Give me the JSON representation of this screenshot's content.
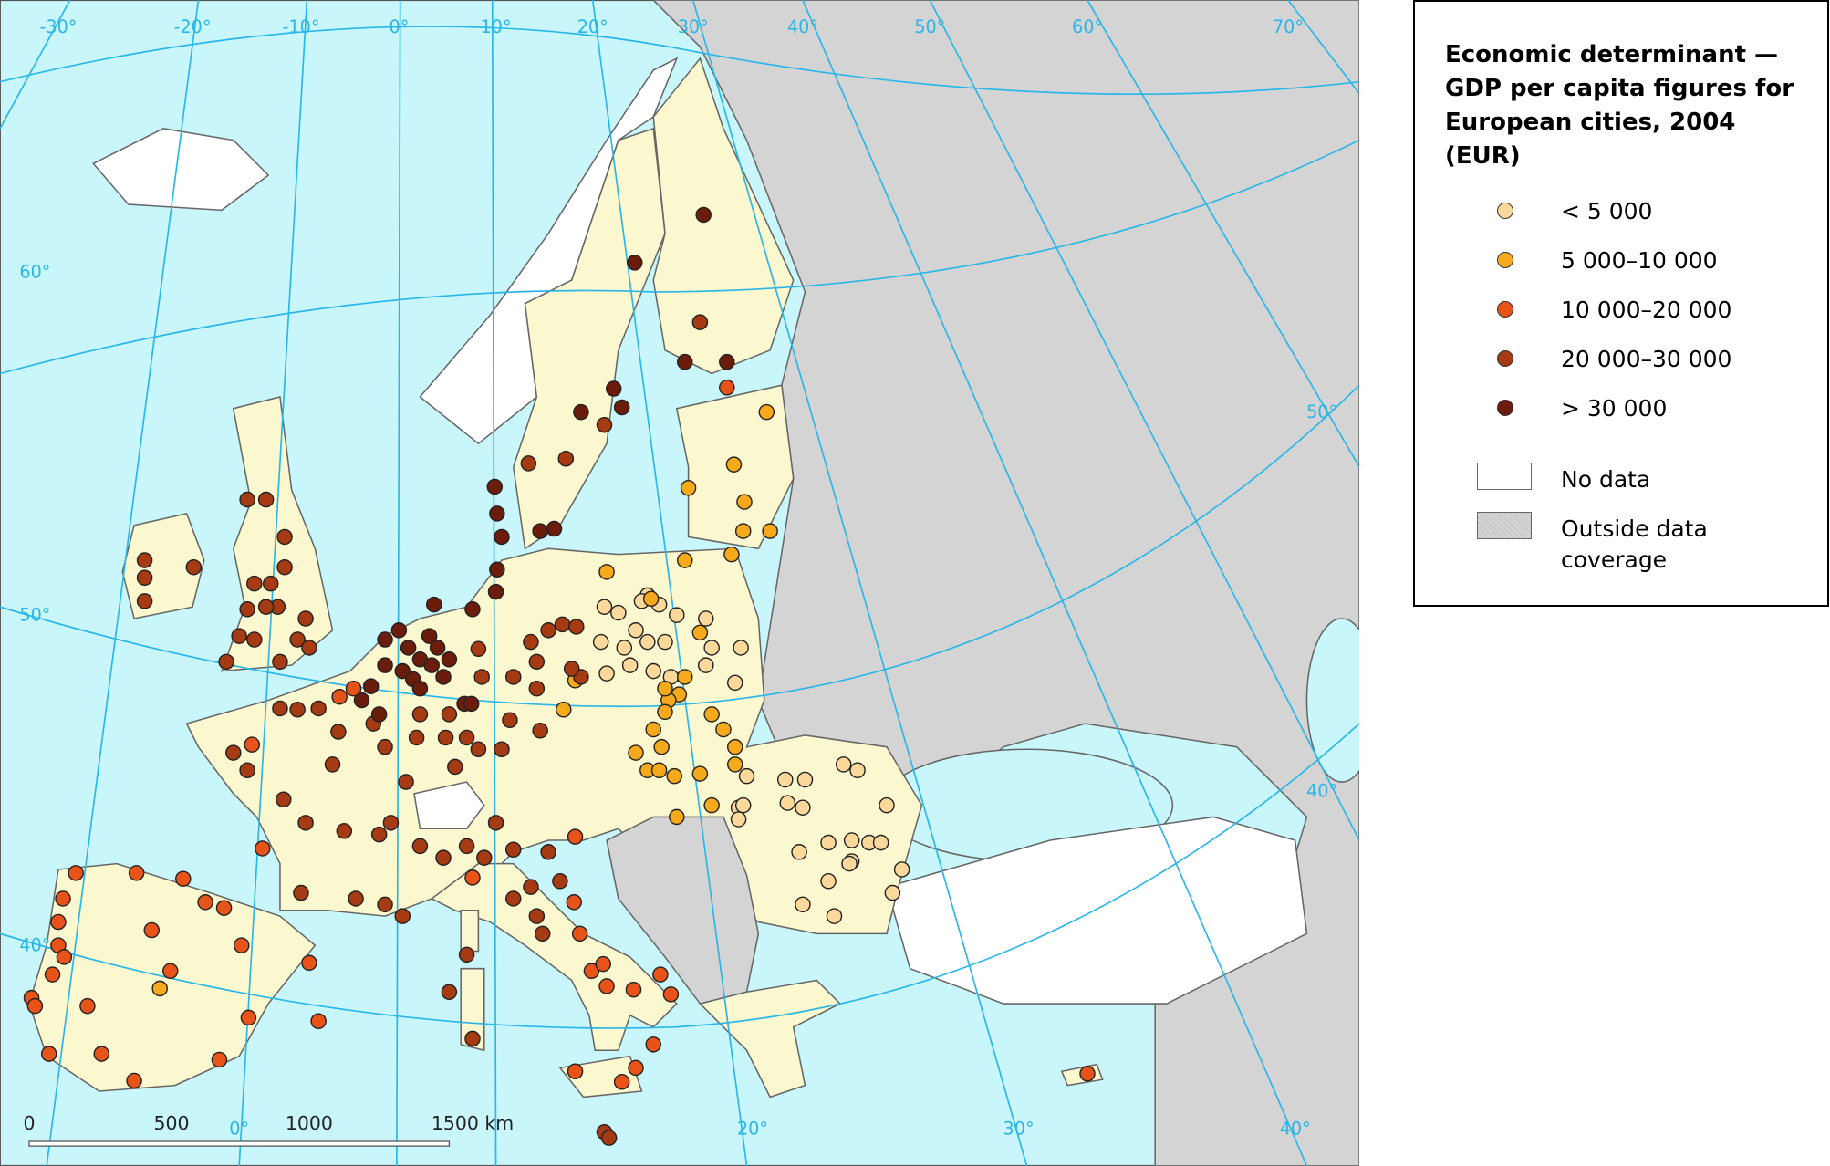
{
  "title": "Economic determinant — GDP per capita figures for European cities, 2004 (EUR)",
  "legend": {
    "classes": [
      {
        "label": "< 5 000",
        "color": "#fcd89a"
      },
      {
        "label": "5 000–10 000",
        "color": "#f6a91b"
      },
      {
        "label": "10 000–20 000",
        "color": "#e8531a"
      },
      {
        "label": "20 000–30 000",
        "color": "#a63a12"
      },
      {
        "label": "> 30 000",
        "color": "#6b1c0a"
      }
    ],
    "areas": [
      {
        "label": "No data",
        "color": "#ffffff"
      },
      {
        "label": "Outside data coverage",
        "color": "#d4d4d4"
      }
    ]
  },
  "graticule_labels": [
    "-30°",
    "-20°",
    "-10°",
    "0°",
    "10°",
    "20°",
    "30°",
    "40°",
    "50°",
    "60°",
    "70°",
    "60°",
    "50°",
    "40°",
    "50°",
    "40°",
    "0°",
    "20°",
    "30°",
    "40°"
  ],
  "scale_bar": [
    "0",
    "500",
    "1000",
    "1500 km"
  ]
}
